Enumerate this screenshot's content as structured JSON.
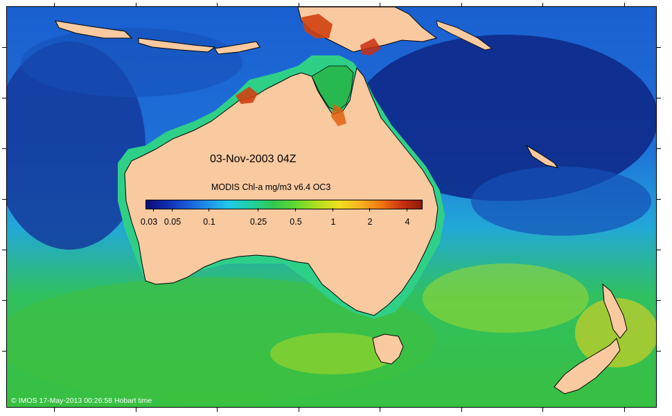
{
  "map": {
    "title": "03-Nov-2003 04Z",
    "colorbar_title": "MODIS Chl-a mg/m3 v6.4 OC3",
    "colorbar_ticks": [
      "0.03",
      "0.05",
      "0.1",
      "0.25",
      "0.5",
      "1",
      "2",
      "4"
    ],
    "copyright": "© IMOS 17-May-2013 00:26:58 Hobart time",
    "colors": {
      "land": "#f9c9a0",
      "ocean_deep": "#0c2a8c",
      "ocean_mid": "#1e88e0",
      "ocean_shelf": "#28c878",
      "high_chl": "#e05010"
    }
  }
}
